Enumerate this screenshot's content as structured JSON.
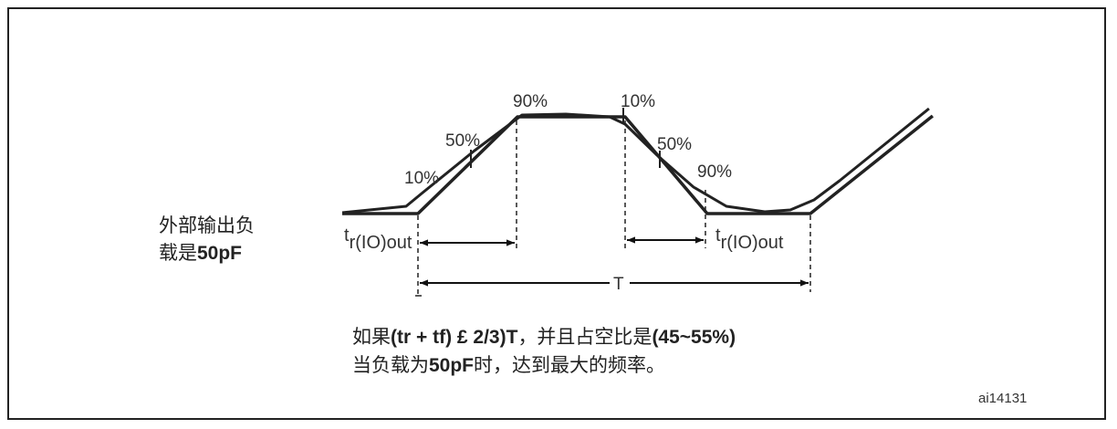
{
  "load_label": {
    "line1": "外部输出负",
    "line2_prefix": "载是",
    "line2_bold": "50pF"
  },
  "labels": {
    "rise_10": "10%",
    "rise_50": "50%",
    "rise_90": "90%",
    "fall_10": "10%",
    "fall_50": "50%",
    "fall_90": "90%",
    "period": "T"
  },
  "rise_time": {
    "main": "t",
    "sub": "r(IO)out"
  },
  "fall_time": {
    "main": "t",
    "sub": "r(IO)out"
  },
  "note": {
    "line1_a": "如果",
    "line1_b": "(tr + tf) £ 2/3)T",
    "line1_c": "，并且占空比是",
    "line1_d": "(45~55%)",
    "line2_a": "当负载为",
    "line2_b": "50pF",
    "line2_c": "时，达到最大的频率。"
  },
  "figure_id": "ai14131"
}
